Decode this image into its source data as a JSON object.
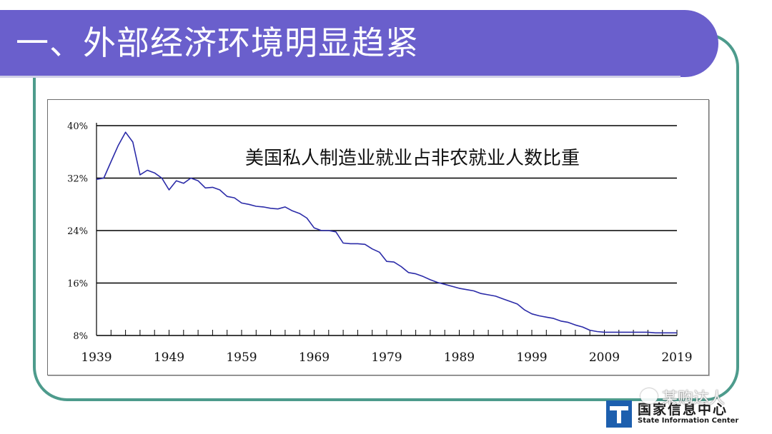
{
  "slide": {
    "title": "一、外部经济环境明显趋紧"
  },
  "logo": {
    "name_cn": "国家信息中心",
    "name_en": "State Information Center"
  },
  "watermark": {
    "icon": "wechat-icon",
    "text": "某购达人"
  },
  "colors": {
    "title_bar": "#6a5fcc",
    "frame": "#4d9b8c",
    "line": "#2b2ba8"
  },
  "chart_data": {
    "type": "line",
    "title": "美国私人制造业就业占非农就业人数比重",
    "xlabel": "",
    "ylabel": "",
    "x_tick_labels": [
      "1939",
      "1949",
      "1959",
      "1969",
      "1979",
      "1989",
      "1999",
      "2009",
      "2019"
    ],
    "y_tick_labels": [
      "8%",
      "16%",
      "24%",
      "32%",
      "40%"
    ],
    "xlim": [
      1939,
      2019
    ],
    "ylim": [
      8,
      40
    ],
    "grid": "horizontal",
    "series": [
      {
        "x": [
          1939,
          1940,
          1941,
          1942,
          1943,
          1944,
          1945,
          1946,
          1947,
          1948,
          1949,
          1950,
          1951,
          1952,
          1953,
          1954,
          1955,
          1956,
          1957,
          1958,
          1959,
          1960,
          1961,
          1962,
          1963,
          1964,
          1965,
          1966,
          1967,
          1968,
          1969,
          1970,
          1971,
          1972,
          1973,
          1974,
          1975,
          1976,
          1977,
          1978,
          1979,
          1980,
          1981,
          1982,
          1983,
          1984,
          1985,
          1986,
          1987,
          1988,
          1989,
          1990,
          1991,
          1992,
          1993,
          1994,
          1995,
          1996,
          1997,
          1998,
          1999,
          2000,
          2001,
          2002,
          2003,
          2004,
          2005,
          2006,
          2007,
          2008,
          2009,
          2010,
          2011,
          2012,
          2013,
          2014,
          2015,
          2016,
          2017,
          2018,
          2019
        ],
        "y": [
          31.8,
          32.0,
          34.5,
          37.0,
          39.0,
          37.5,
          32.5,
          33.2,
          32.8,
          32.0,
          30.2,
          31.6,
          31.2,
          32.0,
          31.6,
          30.5,
          30.6,
          30.2,
          29.2,
          29.0,
          28.2,
          28.0,
          27.7,
          27.6,
          27.4,
          27.3,
          27.6,
          27.0,
          26.6,
          25.9,
          24.4,
          24.0,
          24.0,
          23.8,
          22.1,
          22.0,
          22.0,
          21.9,
          21.2,
          20.7,
          19.3,
          19.2,
          18.5,
          17.6,
          17.4,
          17.0,
          16.5,
          16.1,
          15.8,
          15.5,
          15.2,
          15.0,
          14.8,
          14.4,
          14.2,
          14.0,
          13.6,
          13.2,
          12.8,
          11.9,
          11.3,
          11.0,
          10.8,
          10.6,
          10.2,
          10.0,
          9.6,
          9.3,
          8.8,
          8.6,
          8.5,
          8.5,
          8.5,
          8.5,
          8.5,
          8.5,
          8.5,
          8.4,
          8.4,
          8.4,
          8.4
        ]
      }
    ]
  }
}
